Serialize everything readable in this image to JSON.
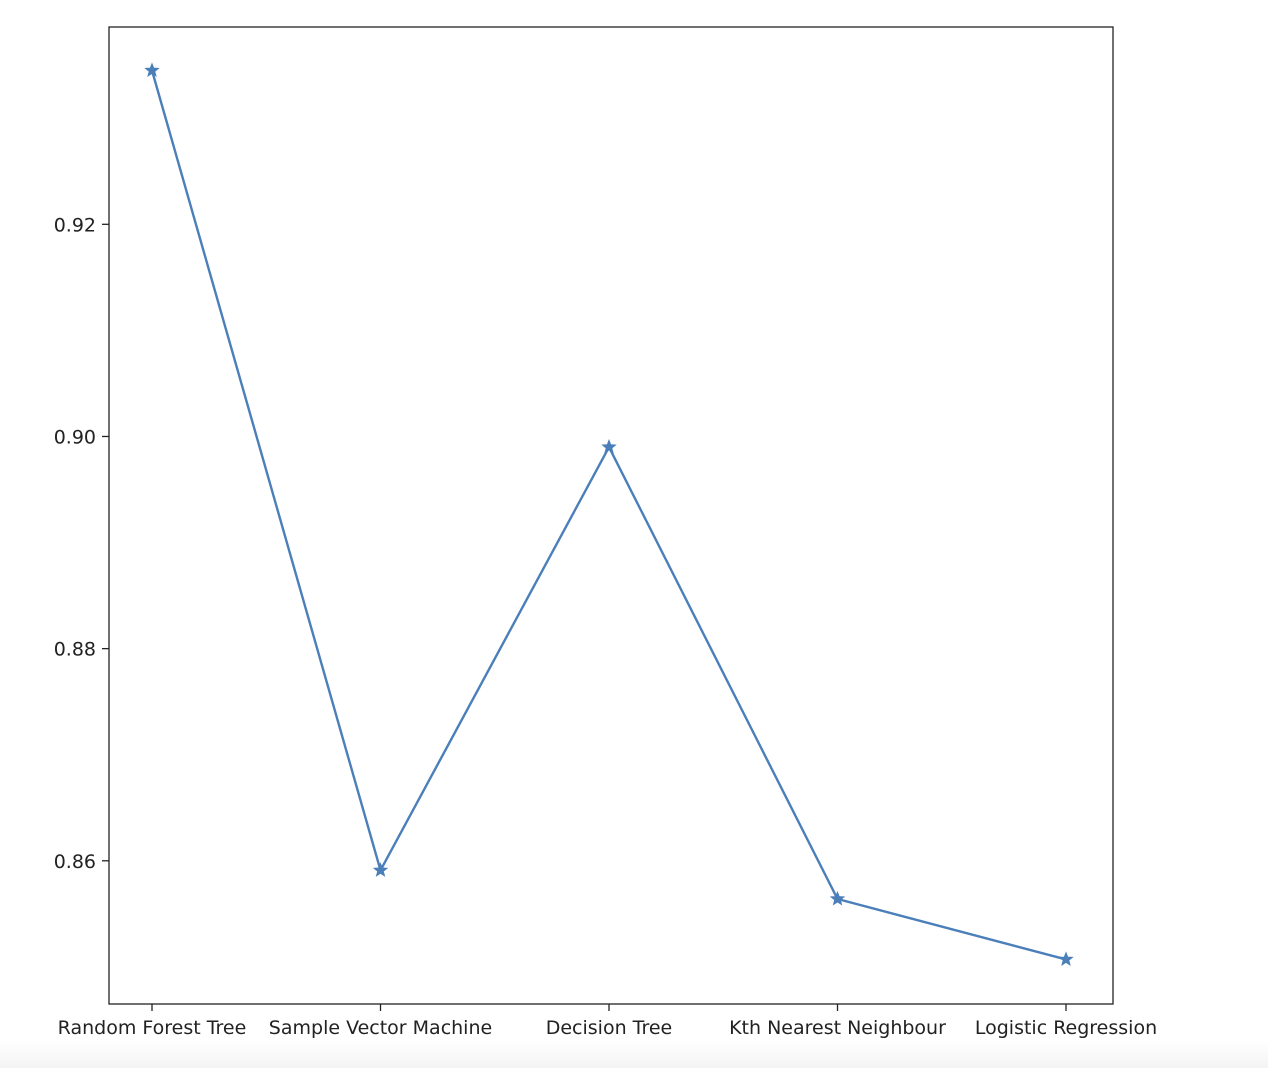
{
  "chart_data": {
    "type": "line",
    "title": "",
    "xlabel": "",
    "ylabel": "",
    "categories": [
      "Random Forest Tree",
      "Sample Vector Machine",
      "Decision Tree",
      "Kth Nearest Neighbour",
      "Logistic Regression"
    ],
    "series": [
      {
        "values": [
          0.9345,
          0.8591,
          0.899,
          0.8564,
          0.8507
        ],
        "color": "#4a7fb9",
        "marker": "star"
      }
    ],
    "ylim": [
      0.8465,
      0.9386
    ],
    "yticks": [
      0.86,
      0.88,
      0.9,
      0.92
    ],
    "ytick_labels": [
      "0.86",
      "0.88",
      "0.90",
      "0.92"
    ],
    "grid": false,
    "legend": "none"
  }
}
